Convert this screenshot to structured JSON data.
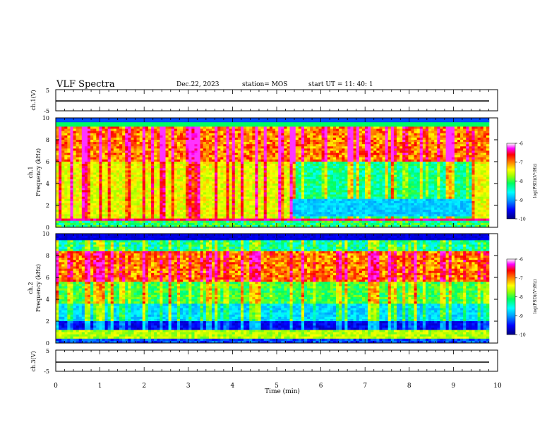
{
  "header": {
    "title": "VLF Spectra",
    "date": "Dec.22, 2023",
    "station": "station= MOS",
    "start": "start UT =   11: 40: 1"
  },
  "colors": {
    "background": "#ffffff",
    "colormap": [
      "#000080",
      "#0000ff",
      "#00a0ff",
      "#00ffff",
      "#00ff60",
      "#a0ff00",
      "#ffff00",
      "#ff8000",
      "#ff0000",
      "#ff00ff",
      "#ffffff"
    ]
  },
  "chart_data": [
    {
      "type": "line",
      "panel": "ch1-voltage",
      "ylabel": "ch.1(V)",
      "ylim": [
        -5,
        5
      ],
      "yticks": [
        "5",
        "-5"
      ],
      "x": [
        0,
        10
      ],
      "series": [
        {
          "values": [
            -2.2,
            -2.2
          ]
        }
      ]
    },
    {
      "type": "heatmap",
      "panel": "ch1-spectrogram",
      "ylabel": "ch.1\nFrequency (kHz)",
      "ylim": [
        0,
        10
      ],
      "yticks": [
        "0",
        "2",
        "4",
        "6",
        "8",
        "10"
      ],
      "xlim": [
        0,
        10
      ],
      "colorbar": {
        "label": "log(PSD)(V²/Hz)",
        "range": [
          -10,
          -6
        ],
        "ticks": [
          "-6",
          "-7",
          "-8",
          "-9",
          "-10"
        ]
      }
    },
    {
      "type": "heatmap",
      "panel": "ch2-spectrogram",
      "ylabel": "ch.2\nFrequency (kHz)",
      "ylim": [
        0,
        10
      ],
      "yticks": [
        "0",
        "2",
        "4",
        "6",
        "8",
        "10"
      ],
      "xlim": [
        0,
        10
      ],
      "colorbar": {
        "label": "log(PSD)(V²/Hz)",
        "range": [
          -10,
          -6
        ],
        "ticks": [
          "-6",
          "-7",
          "-8",
          "-9",
          "-10"
        ]
      }
    },
    {
      "type": "line",
      "panel": "ch3-voltage",
      "ylabel": "ch.3(V)",
      "ylim": [
        -5,
        5
      ],
      "yticks": [
        "5",
        "-5"
      ],
      "x": [
        0,
        10
      ],
      "series": [
        {
          "values": [
            -2.2,
            -2.2
          ]
        }
      ]
    }
  ],
  "xaxis": {
    "label": "Time (min)",
    "ticks": [
      "0",
      "1",
      "2",
      "3",
      "4",
      "5",
      "6",
      "7",
      "8",
      "9",
      "10"
    ]
  }
}
